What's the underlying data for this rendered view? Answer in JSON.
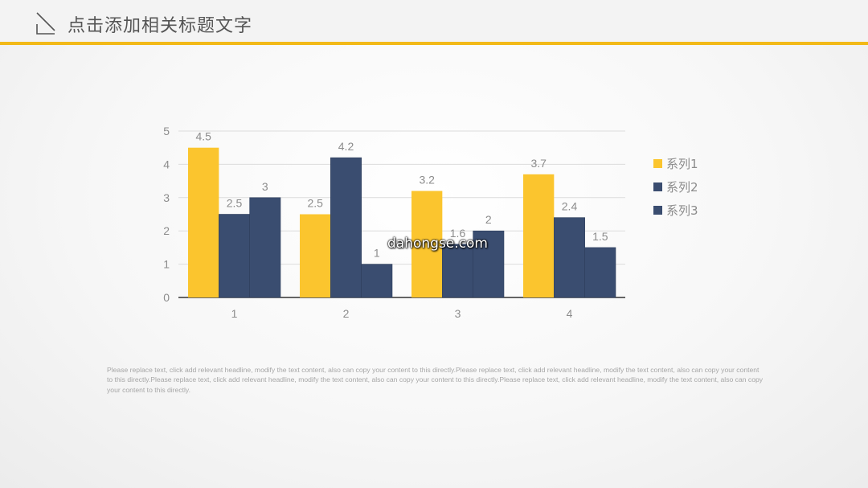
{
  "header": {
    "title": "点击添加相关标题文字"
  },
  "colors": {
    "accent": "#f2b918",
    "series1": "#fbc52e",
    "series2": "#3a4d70",
    "series3": "#3a4d70"
  },
  "chart_data": {
    "type": "bar",
    "categories": [
      "1",
      "2",
      "3",
      "4"
    ],
    "series": [
      {
        "name": "系列1",
        "values": [
          4.5,
          2.5,
          3.2,
          3.7
        ],
        "labels": [
          "4.5",
          "2.5",
          "3.2",
          "3.7"
        ]
      },
      {
        "name": "系列2",
        "values": [
          2.5,
          4.2,
          1.6,
          2.4
        ],
        "labels": [
          "2.5",
          "4.2",
          "1.6",
          "2.4"
        ]
      },
      {
        "name": "系列3",
        "values": [
          3,
          1,
          2,
          1.5
        ],
        "labels": [
          "3",
          "1",
          "2",
          "1.5"
        ]
      }
    ],
    "ylim": [
      0,
      5
    ],
    "yticks": [
      "0",
      "1",
      "2",
      "3",
      "4",
      "5"
    ],
    "grid": true,
    "legend_position": "right"
  },
  "body": {
    "text": "Please replace text, click add relevant headline, modify the text content, also can copy your content to this directly.Please replace text, click add relevant headline, modify the text content, also can copy your content to this directly.Please replace text, click add relevant headline, modify the text content, also can copy your content to this directly.Please replace text, click add relevant headline, modify the text content, also can copy your content to this directly."
  },
  "watermark": {
    "text": "dahongse.com"
  }
}
